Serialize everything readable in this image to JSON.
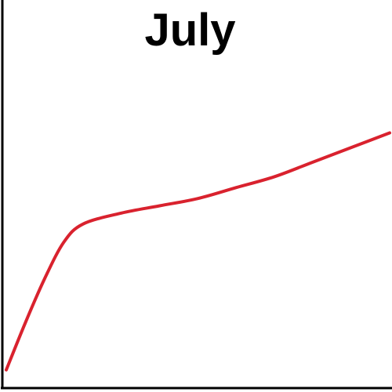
{
  "chart_data": {
    "type": "line",
    "title": "July",
    "xlabel": "",
    "ylabel": "",
    "grid": false,
    "series": [
      {
        "color": "#d9222e",
        "points": [
          [
            0,
            5
          ],
          [
            5,
            18
          ],
          [
            10,
            30
          ],
          [
            15,
            40
          ],
          [
            20,
            45
          ],
          [
            30,
            48
          ],
          [
            40,
            50
          ],
          [
            50,
            52
          ],
          [
            60,
            55
          ],
          [
            70,
            58
          ],
          [
            80,
            62
          ],
          [
            90,
            66
          ],
          [
            100,
            70
          ]
        ]
      }
    ]
  }
}
